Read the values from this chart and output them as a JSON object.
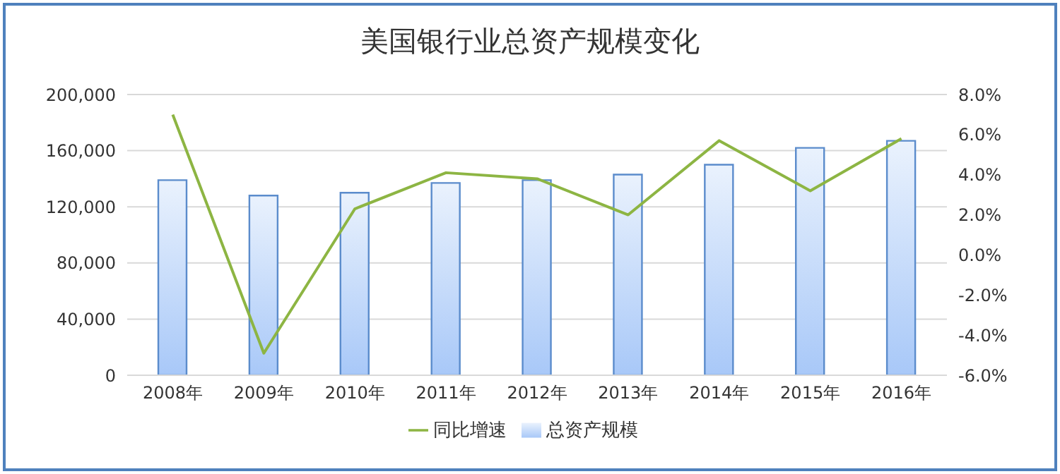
{
  "chart_data": {
    "type": "bar",
    "title": "美国银行业总资产规模变化",
    "categories": [
      "2008年",
      "2009年",
      "2010年",
      "2011年",
      "2012年",
      "2013年",
      "2014年",
      "2015年",
      "2016年"
    ],
    "series": [
      {
        "name": "总资产规模",
        "color": "#5b8ccc",
        "values": [
          139000,
          128000,
          130000,
          137000,
          139000,
          143000,
          150000,
          162000,
          167000
        ]
      },
      {
        "name": "同比增速",
        "type": "line",
        "axis": "y2",
        "color": "#8db543",
        "values": [
          7.0,
          -4.9,
          2.3,
          4.1,
          3.8,
          2.0,
          5.7,
          3.2,
          5.8
        ]
      }
    ],
    "ylim": [
      0,
      200000
    ],
    "yticks": [
      {
        "value": 0,
        "label": "0"
      },
      {
        "value": 40000,
        "label": "40,000"
      },
      {
        "value": 80000,
        "label": "80,000"
      },
      {
        "value": 120000,
        "label": "120,000"
      },
      {
        "value": 160000,
        "label": "160,000"
      },
      {
        "value": 200000,
        "label": "200,000"
      }
    ],
    "y2lim": [
      -6,
      8
    ],
    "y2ticks": [
      {
        "value": -6,
        "label": "-6.0%"
      },
      {
        "value": -4,
        "label": "-4.0%"
      },
      {
        "value": -2,
        "label": "-2.0%"
      },
      {
        "value": 0,
        "label": "0.0%"
      },
      {
        "value": 2,
        "label": "2.0%"
      },
      {
        "value": 4,
        "label": "4.0%"
      },
      {
        "value": 6,
        "label": "6.0%"
      },
      {
        "value": 8,
        "label": "8.0%"
      }
    ],
    "grid": "y",
    "legend": "bottom",
    "marker": "none"
  }
}
